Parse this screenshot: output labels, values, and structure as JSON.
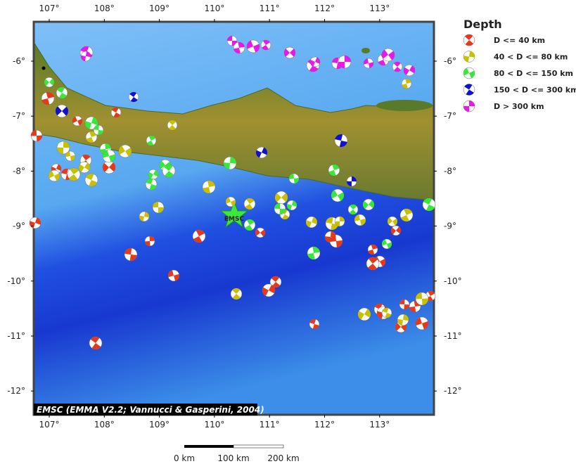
{
  "map": {
    "lon_ticks": [
      {
        "value": 107,
        "label": "107°"
      },
      {
        "value": 108,
        "label": "108°"
      },
      {
        "value": 109,
        "label": "109°"
      },
      {
        "value": 110,
        "label": "110°"
      },
      {
        "value": 111,
        "label": "111°"
      },
      {
        "value": 112,
        "label": "112°"
      },
      {
        "value": 113,
        "label": "113°"
      }
    ],
    "lat_ticks": [
      {
        "value": -6,
        "label": "-6°"
      },
      {
        "value": -7,
        "label": "-7°"
      },
      {
        "value": -8,
        "label": "-8°"
      },
      {
        "value": -9,
        "label": "-9°"
      },
      {
        "value": -10,
        "label": "-10°"
      },
      {
        "value": -11,
        "label": "-11°"
      },
      {
        "value": -12,
        "label": "-12°"
      }
    ],
    "star_label": "EMSC",
    "credit": "EMSC (EMMA V2.2; Vannucci & Gasperini, 2004)",
    "scale_labels": [
      "0 km",
      "100 km",
      "200 km"
    ]
  },
  "legend": {
    "title": "Depth",
    "items": [
      {
        "label": "D <= 40 km",
        "color": "#e8381c"
      },
      {
        "label": "40 < D <= 80 km",
        "color": "#c8c000"
      },
      {
        "label": "80 < D <= 150 km",
        "color": "#38e838"
      },
      {
        "label": "150 < D <= 300 km",
        "color": "#1010d0"
      },
      {
        "label": "D > 300 km",
        "color": "#e818e8"
      }
    ]
  }
}
